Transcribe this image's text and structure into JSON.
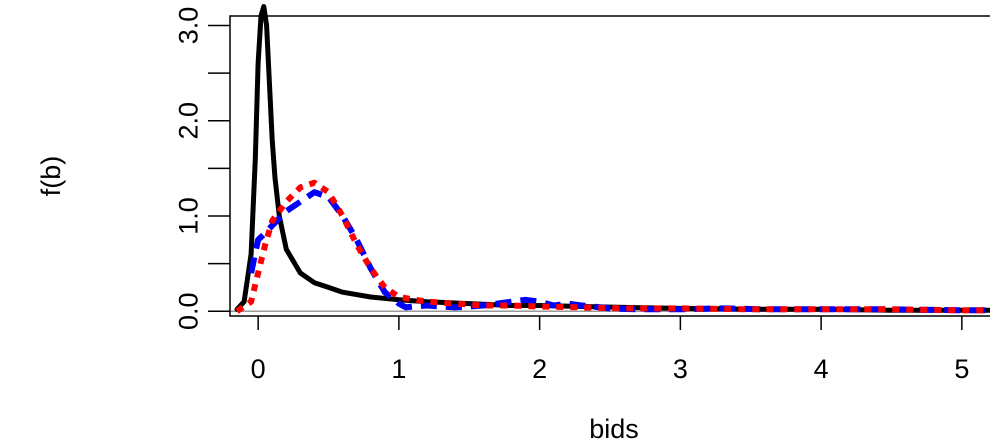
{
  "chart_data": {
    "type": "line",
    "title": "",
    "xlabel": "bids",
    "ylabel": "f(b)",
    "xlim": [
      -0.2,
      5.2
    ],
    "ylim": [
      -0.05,
      3.1
    ],
    "x_ticks": [
      0,
      1,
      2,
      3,
      4,
      5
    ],
    "x_tick_labels": [
      "0",
      "1",
      "2",
      "3",
      "4",
      "5"
    ],
    "y_ticks": [
      0.0,
      0.5,
      1.0,
      1.5,
      2.0,
      2.5,
      3.0
    ],
    "y_tick_labels": [
      "0.0",
      "",
      "1.0",
      "",
      "2.0",
      "",
      "3.0"
    ],
    "grid": false,
    "legend": "none",
    "baseline_y": 0,
    "series": [
      {
        "color": "#000000",
        "style": "solid",
        "x": [
          -0.15,
          -0.1,
          -0.05,
          -0.02,
          0.0,
          0.02,
          0.04,
          0.06,
          0.08,
          0.1,
          0.12,
          0.15,
          0.2,
          0.3,
          0.4,
          0.5,
          0.6,
          0.8,
          1.0,
          1.2,
          1.5,
          1.8,
          2.0,
          2.3,
          2.6,
          3.0,
          3.5,
          4.0,
          4.5,
          5.0,
          5.2
        ],
        "y": [
          0.02,
          0.1,
          0.6,
          1.6,
          2.6,
          3.1,
          3.2,
          3.0,
          2.4,
          1.8,
          1.4,
          1.0,
          0.65,
          0.4,
          0.3,
          0.25,
          0.2,
          0.15,
          0.12,
          0.1,
          0.08,
          0.06,
          0.06,
          0.05,
          0.04,
          0.03,
          0.02,
          0.02,
          0.01,
          0.01,
          0.01
        ]
      },
      {
        "color": "#0000ff",
        "style": "dashed",
        "x": [
          -0.05,
          0.0,
          0.05,
          0.1,
          0.2,
          0.3,
          0.4,
          0.5,
          0.6,
          0.7,
          0.8,
          0.9,
          1.0,
          1.05,
          1.1,
          1.2,
          1.3,
          1.4,
          1.5,
          1.6,
          1.7,
          1.8,
          1.9,
          2.0,
          2.1,
          2.2,
          2.3,
          2.5,
          2.7,
          3.0,
          3.3,
          3.6,
          4.0,
          4.5,
          5.0,
          5.2
        ],
        "y": [
          0.4,
          0.75,
          0.82,
          0.9,
          1.05,
          1.15,
          1.25,
          1.2,
          1.0,
          0.75,
          0.45,
          0.2,
          0.08,
          0.04,
          0.05,
          0.06,
          0.05,
          0.04,
          0.05,
          0.06,
          0.08,
          0.1,
          0.12,
          0.1,
          0.06,
          0.08,
          0.06,
          0.03,
          0.02,
          0.02,
          0.03,
          0.02,
          0.02,
          0.02,
          0.01,
          0.01
        ]
      },
      {
        "color": "#ff0000",
        "style": "dotted",
        "x": [
          -0.15,
          -0.05,
          0.0,
          0.05,
          0.1,
          0.2,
          0.3,
          0.4,
          0.5,
          0.6,
          0.7,
          0.8,
          0.9,
          1.0,
          1.2,
          1.4,
          1.6,
          1.8,
          2.0,
          2.3,
          2.6,
          3.0,
          3.5,
          4.0,
          4.5,
          5.0,
          5.2
        ],
        "y": [
          0.0,
          0.1,
          0.4,
          0.7,
          0.95,
          1.15,
          1.3,
          1.35,
          1.25,
          1.0,
          0.7,
          0.45,
          0.25,
          0.15,
          0.1,
          0.08,
          0.06,
          0.06,
          0.05,
          0.04,
          0.03,
          0.03,
          0.02,
          0.02,
          0.02,
          0.01,
          0.01
        ]
      }
    ]
  }
}
